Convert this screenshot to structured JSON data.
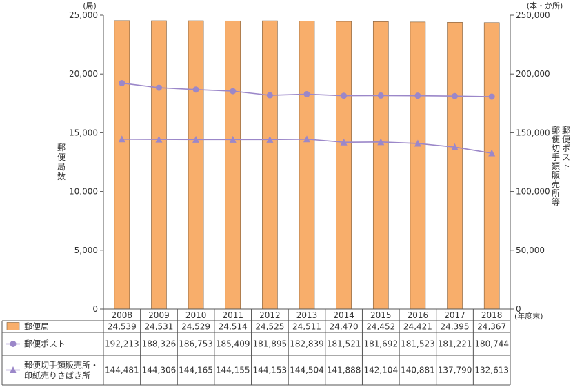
{
  "chart_data": {
    "type": "bar",
    "categories": [
      "2008",
      "2009",
      "2010",
      "2011",
      "2012",
      "2013",
      "2014",
      "2015",
      "2016",
      "2017",
      "2018"
    ],
    "x_unit": "(年度末)",
    "series": [
      {
        "name": "郵便局",
        "kind": "bar",
        "axis": "left",
        "color": "#f8ae6b",
        "values": [
          24539,
          24531,
          24529,
          24514,
          24525,
          24511,
          24470,
          24452,
          24421,
          24395,
          24367
        ],
        "labels": [
          "24,539",
          "24,531",
          "24,529",
          "24,514",
          "24,525",
          "24,511",
          "24,470",
          "24,452",
          "24,421",
          "24,395",
          "24,367"
        ]
      },
      {
        "name": "郵便ポスト",
        "kind": "line",
        "marker": "circle",
        "axis": "right",
        "color": "#9b87c9",
        "values": [
          192213,
          188326,
          186753,
          185409,
          181895,
          182839,
          181521,
          181692,
          181523,
          181221,
          180744
        ],
        "labels": [
          "192,213",
          "188,326",
          "186,753",
          "185,409",
          "181,895",
          "182,839",
          "181,521",
          "181,692",
          "181,523",
          "181,221",
          "180,744"
        ]
      },
      {
        "name_lines": [
          "郵便切手類販売所・",
          "印紙売りさばき所"
        ],
        "kind": "line",
        "marker": "triangle",
        "axis": "right",
        "color": "#9b87c9",
        "values": [
          144481,
          144306,
          144165,
          144155,
          144153,
          144504,
          141888,
          142104,
          140881,
          137790,
          132613
        ],
        "labels": [
          "144,481",
          "144,306",
          "144,165",
          "144,155",
          "144,153",
          "144,504",
          "141,888",
          "142,104",
          "140,881",
          "137,790",
          "132,613"
        ]
      }
    ],
    "left_axis": {
      "unit": "(局)",
      "label_chars": [
        "郵",
        "便",
        "局",
        "数"
      ],
      "ylim": [
        0,
        25000
      ],
      "ticks": [
        0,
        5000,
        10000,
        15000,
        20000,
        25000
      ],
      "tick_labels": [
        "0",
        "5,000",
        "10,000",
        "15,000",
        "20,000",
        "25,000"
      ]
    },
    "right_axis": {
      "unit": "(本・か所)",
      "label_columns": [
        [
          "郵",
          "便",
          "ポ",
          "ス",
          "ト"
        ],
        [
          "郵",
          "便",
          "切",
          "手",
          "類",
          "販",
          "売",
          "所",
          "等"
        ]
      ],
      "ylim": [
        0,
        250000
      ],
      "ticks": [
        0,
        50000,
        100000,
        150000,
        200000,
        250000
      ],
      "tick_labels": [
        "0",
        "50,000",
        "100,000",
        "150,000",
        "200,000",
        "250,000"
      ]
    },
    "grid": false,
    "legend": "data-table-rows"
  }
}
